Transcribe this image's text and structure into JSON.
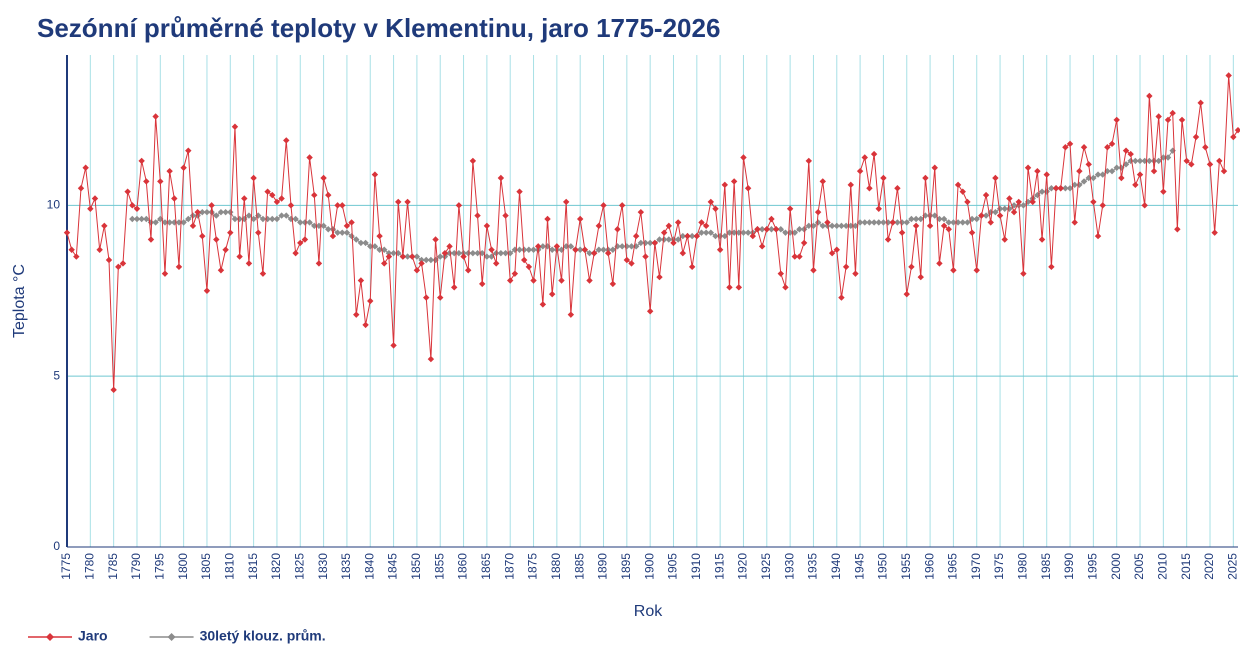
{
  "chart_data": {
    "type": "line",
    "title": "Sezónní průměrné teploty v Klementinu, jaro 1775-2026",
    "x_label": "Rok",
    "y_label": "Teplota  °C",
    "x": [
      1775,
      1776,
      1777,
      1778,
      1779,
      1780,
      1781,
      1782,
      1783,
      1784,
      1785,
      1786,
      1787,
      1788,
      1789,
      1790,
      1791,
      1792,
      1793,
      1794,
      1795,
      1796,
      1797,
      1798,
      1799,
      1800,
      1801,
      1802,
      1803,
      1804,
      1805,
      1806,
      1807,
      1808,
      1809,
      1810,
      1811,
      1812,
      1813,
      1814,
      1815,
      1816,
      1817,
      1818,
      1819,
      1820,
      1821,
      1822,
      1823,
      1824,
      1825,
      1826,
      1827,
      1828,
      1829,
      1830,
      1831,
      1832,
      1833,
      1834,
      1835,
      1836,
      1837,
      1838,
      1839,
      1840,
      1841,
      1842,
      1843,
      1844,
      1845,
      1846,
      1847,
      1848,
      1849,
      1850,
      1851,
      1852,
      1853,
      1854,
      1855,
      1856,
      1857,
      1858,
      1859,
      1860,
      1861,
      1862,
      1863,
      1864,
      1865,
      1866,
      1867,
      1868,
      1869,
      1870,
      1871,
      1872,
      1873,
      1874,
      1875,
      1876,
      1877,
      1878,
      1879,
      1880,
      1881,
      1882,
      1883,
      1884,
      1885,
      1886,
      1887,
      1888,
      1889,
      1890,
      1891,
      1892,
      1893,
      1894,
      1895,
      1896,
      1897,
      1898,
      1899,
      1900,
      1901,
      1902,
      1903,
      1904,
      1905,
      1906,
      1907,
      1908,
      1909,
      1910,
      1911,
      1912,
      1913,
      1914,
      1915,
      1916,
      1917,
      1918,
      1919,
      1920,
      1921,
      1922,
      1923,
      1924,
      1925,
      1926,
      1927,
      1928,
      1929,
      1930,
      1931,
      1932,
      1933,
      1934,
      1935,
      1936,
      1937,
      1938,
      1939,
      1940,
      1941,
      1942,
      1943,
      1944,
      1945,
      1946,
      1947,
      1948,
      1949,
      1950,
      1951,
      1952,
      1953,
      1954,
      1955,
      1956,
      1957,
      1958,
      1959,
      1960,
      1961,
      1962,
      1963,
      1964,
      1965,
      1966,
      1967,
      1968,
      1969,
      1970,
      1971,
      1972,
      1973,
      1974,
      1975,
      1976,
      1977,
      1978,
      1979,
      1980,
      1981,
      1982,
      1983,
      1984,
      1985,
      1986,
      1987,
      1988,
      1989,
      1990,
      1991,
      1992,
      1993,
      1994,
      1995,
      1996,
      1997,
      1998,
      1999,
      2000,
      2001,
      2002,
      2003,
      2004,
      2005,
      2006,
      2007,
      2008,
      2009,
      2010,
      2011,
      2012,
      2013,
      2014,
      2015,
      2016,
      2017,
      2018,
      2019,
      2020,
      2021,
      2022,
      2023,
      2024,
      2025,
      2026
    ],
    "series": [
      {
        "name": "Jaro",
        "color": "#d9343a",
        "values": [
          9.2,
          8.7,
          8.5,
          10.5,
          11.1,
          9.9,
          10.2,
          8.7,
          9.4,
          8.4,
          4.6,
          8.2,
          8.3,
          10.4,
          10.0,
          9.9,
          11.3,
          10.7,
          9.0,
          12.6,
          10.7,
          8.0,
          11.0,
          10.2,
          8.2,
          11.1,
          11.6,
          9.4,
          9.8,
          9.1,
          7.5,
          10.0,
          9.0,
          8.1,
          8.7,
          9.2,
          12.3,
          8.5,
          10.2,
          8.3,
          10.8,
          9.2,
          8.0,
          10.4,
          10.3,
          10.1,
          10.2,
          11.9,
          10.0,
          8.6,
          8.9,
          9.0,
          11.4,
          10.3,
          8.3,
          10.8,
          10.3,
          9.1,
          10.0,
          10.0,
          9.4,
          9.5,
          6.8,
          7.8,
          6.5,
          7.2,
          10.9,
          9.1,
          8.3,
          8.5,
          5.9,
          10.1,
          8.5,
          10.1,
          8.5,
          8.1,
          8.3,
          7.3,
          5.5,
          9.0,
          7.3,
          8.6,
          8.8,
          7.6,
          10.0,
          8.5,
          8.1,
          11.3,
          9.7,
          7.7,
          9.4,
          8.7,
          8.3,
          10.8,
          9.7,
          7.8,
          8.0,
          10.4,
          8.4,
          8.2,
          7.8,
          8.8,
          7.1,
          9.6,
          7.4,
          8.8,
          7.8,
          10.1,
          6.8,
          8.7,
          9.6,
          8.7,
          7.8,
          8.6,
          9.4,
          10.0,
          8.6,
          7.7,
          9.3,
          10.0,
          8.4,
          8.3,
          9.1,
          9.8,
          8.5,
          6.9,
          8.9,
          7.9,
          9.2,
          9.4,
          8.9,
          9.5,
          8.6,
          9.1,
          8.2,
          9.1,
          9.5,
          9.4,
          10.1,
          9.9,
          8.7,
          10.6,
          7.6,
          10.7,
          7.6,
          11.4,
          10.5,
          9.1,
          9.3,
          8.8,
          9.3,
          9.6,
          9.3,
          8.0,
          7.6,
          9.9,
          8.5,
          8.5,
          8.9,
          11.3,
          8.1,
          9.8,
          10.7,
          9.5,
          8.6,
          8.7,
          7.3,
          8.2,
          10.6,
          8.0,
          11.0,
          11.4,
          10.5,
          11.5,
          9.9,
          10.8,
          9.0,
          9.5,
          10.5,
          9.2,
          7.4,
          8.2,
          9.4,
          7.9,
          10.8,
          9.4,
          11.1,
          8.3,
          9.4,
          9.3,
          8.1,
          10.6,
          10.4,
          10.1,
          9.2,
          8.1,
          9.7,
          10.3,
          9.5,
          10.8,
          9.7,
          9.0,
          10.2,
          9.8,
          10.1,
          8.0,
          11.1,
          10.1,
          11.0,
          9.0,
          10.9,
          8.2,
          10.5,
          10.5,
          11.7,
          11.8,
          9.5,
          11.0,
          11.7,
          11.2,
          10.1,
          9.1,
          10.0,
          11.7,
          11.8,
          12.5,
          10.8,
          11.6,
          11.5,
          10.6,
          10.9,
          10.0,
          13.2,
          11.0,
          12.6,
          10.4,
          12.5,
          12.7,
          9.3,
          12.5,
          11.3,
          11.2,
          12.0,
          13.0,
          11.7,
          11.2,
          9.2,
          11.3,
          11.0,
          13.8,
          12.0,
          12.2
        ]
      },
      {
        "name": "30letý klouz. prům.",
        "color": "#8c8c8c",
        "values": [
          null,
          null,
          null,
          null,
          null,
          null,
          null,
          null,
          null,
          null,
          null,
          null,
          null,
          null,
          9.6,
          9.6,
          9.6,
          9.6,
          9.5,
          9.5,
          9.6,
          9.5,
          9.5,
          9.5,
          9.5,
          9.5,
          9.6,
          9.7,
          9.7,
          9.8,
          9.8,
          9.8,
          9.7,
          9.8,
          9.8,
          9.8,
          9.6,
          9.6,
          9.6,
          9.7,
          9.6,
          9.7,
          9.6,
          9.6,
          9.6,
          9.6,
          9.7,
          9.7,
          9.6,
          9.6,
          9.5,
          9.5,
          9.5,
          9.4,
          9.4,
          9.4,
          9.3,
          9.3,
          9.2,
          9.2,
          9.2,
          9.1,
          9.0,
          8.9,
          8.9,
          8.8,
          8.8,
          8.7,
          8.7,
          8.6,
          8.6,
          8.6,
          8.5,
          8.5,
          8.5,
          8.5,
          8.4,
          8.4,
          8.4,
          8.4,
          8.5,
          8.5,
          8.6,
          8.6,
          8.6,
          8.6,
          8.6,
          8.6,
          8.6,
          8.6,
          8.5,
          8.5,
          8.6,
          8.6,
          8.6,
          8.6,
          8.7,
          8.7,
          8.7,
          8.7,
          8.7,
          8.7,
          8.8,
          8.8,
          8.7,
          8.7,
          8.7,
          8.8,
          8.8,
          8.7,
          8.7,
          8.7,
          8.6,
          8.6,
          8.7,
          8.7,
          8.7,
          8.7,
          8.8,
          8.8,
          8.8,
          8.8,
          8.8,
          8.9,
          8.9,
          8.9,
          8.9,
          9.0,
          9.0,
          9.0,
          9.0,
          9.0,
          9.1,
          9.1,
          9.1,
          9.1,
          9.2,
          9.2,
          9.2,
          9.1,
          9.1,
          9.1,
          9.2,
          9.2,
          9.2,
          9.2,
          9.2,
          9.2,
          9.3,
          9.3,
          9.3,
          9.3,
          9.3,
          9.3,
          9.2,
          9.2,
          9.2,
          9.3,
          9.3,
          9.4,
          9.4,
          9.5,
          9.4,
          9.4,
          9.4,
          9.4,
          9.4,
          9.4,
          9.4,
          9.4,
          9.5,
          9.5,
          9.5,
          9.5,
          9.5,
          9.5,
          9.5,
          9.5,
          9.5,
          9.5,
          9.5,
          9.6,
          9.6,
          9.6,
          9.7,
          9.7,
          9.7,
          9.6,
          9.6,
          9.5,
          9.5,
          9.5,
          9.5,
          9.5,
          9.6,
          9.6,
          9.7,
          9.7,
          9.8,
          9.8,
          9.9,
          9.9,
          9.9,
          10.0,
          10.0,
          10.0,
          10.1,
          10.2,
          10.3,
          10.4,
          10.4,
          10.5,
          10.5,
          10.5,
          10.5,
          10.5,
          10.6,
          10.6,
          10.7,
          10.8,
          10.8,
          10.9,
          10.9,
          11.0,
          11.0,
          11.1,
          11.1,
          11.2,
          11.3,
          11.3,
          11.3,
          11.3,
          11.3,
          11.3,
          11.3,
          11.4,
          11.4,
          11.6,
          null,
          null,
          null,
          null,
          null,
          null,
          null,
          null,
          null,
          null,
          null,
          null,
          null,
          null
        ]
      }
    ],
    "xlim": [
      1775,
      2026
    ],
    "xticks": [
      1775,
      1780,
      1785,
      1790,
      1795,
      1800,
      1805,
      1810,
      1815,
      1820,
      1825,
      1830,
      1835,
      1840,
      1845,
      1850,
      1855,
      1860,
      1865,
      1870,
      1875,
      1880,
      1885,
      1890,
      1895,
      1900,
      1905,
      1910,
      1915,
      1920,
      1925,
      1930,
      1935,
      1940,
      1945,
      1950,
      1955,
      1960,
      1965,
      1970,
      1975,
      1980,
      1985,
      1990,
      1995,
      2000,
      2005,
      2010,
      2015,
      2020,
      2025
    ],
    "ylim": [
      0,
      14.4
    ],
    "yticks": [
      0,
      5,
      10
    ],
    "grid": true,
    "legend": "bottom-left"
  }
}
